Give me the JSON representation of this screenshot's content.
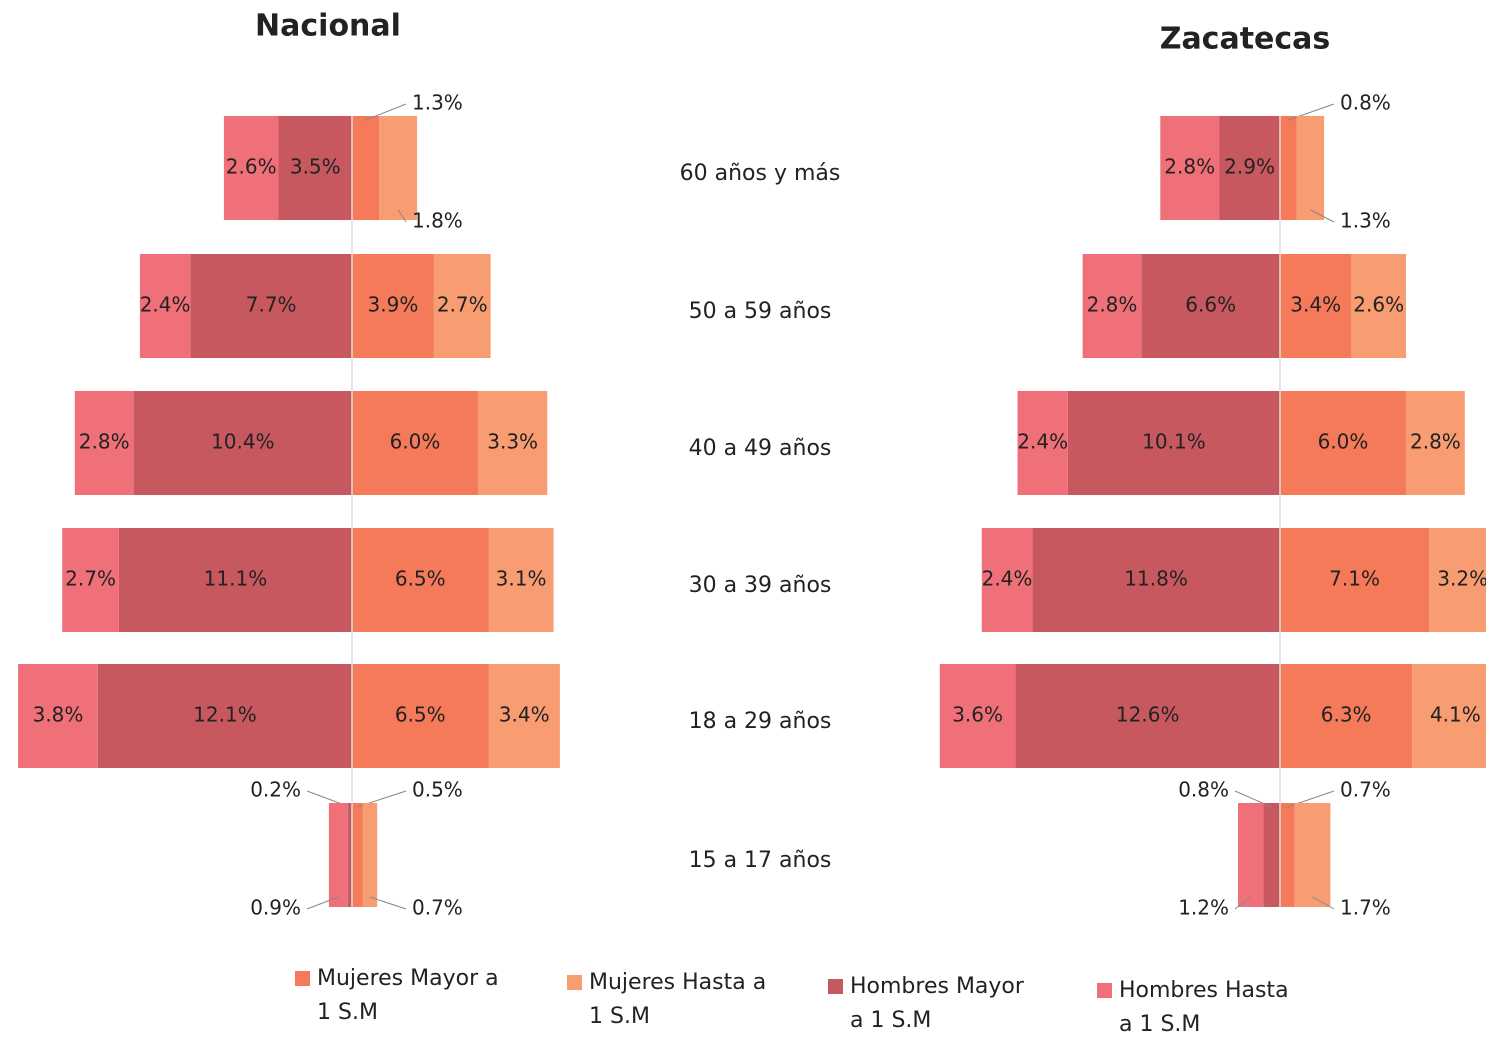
{
  "chart_data": [
    {
      "type": "pyramid",
      "title": "Nacional",
      "categories": [
        "60 años y más",
        "50 a 59 años",
        "40 a 49 años",
        "30 a 39 años",
        "18 a 29 años",
        "15 a 17 años"
      ],
      "series": [
        {
          "name": "Mujeres Mayor a 1 S.M",
          "color": "#f47a5a",
          "values": [
            1.3,
            3.9,
            6.0,
            6.5,
            6.5,
            0.5
          ],
          "value_labels": [
            "1.3%",
            "3.9%",
            "6.0%",
            "6.5%",
            "6.5%",
            "0.5%"
          ]
        },
        {
          "name": "Mujeres Hasta a 1 S.M",
          "color": "#f89c72",
          "values": [
            1.8,
            2.7,
            3.3,
            3.1,
            3.4,
            0.7
          ],
          "value_labels": [
            "1.8%",
            "2.7%",
            "3.3%",
            "3.1%",
            "3.4%",
            "0.7%"
          ]
        },
        {
          "name": "Hombres Mayor a 1 S.M",
          "color": "#c75860",
          "values": [
            3.5,
            7.7,
            10.4,
            11.1,
            12.1,
            0.2
          ],
          "value_labels": [
            "3.5%",
            "7.7%",
            "10.4%",
            "11.1%",
            "12.1%",
            "0.2%"
          ]
        },
        {
          "name": "Hombres Hasta a 1 S.M",
          "color": "#f0707a",
          "values": [
            2.6,
            2.4,
            2.8,
            2.7,
            3.8,
            0.9
          ],
          "value_labels": [
            "2.6%",
            "2.4%",
            "2.8%",
            "2.7%",
            "3.8%",
            "0.9%"
          ]
        }
      ]
    },
    {
      "type": "pyramid",
      "title": "Zacatecas",
      "series": [
        {
          "name": "Mujeres Mayor a 1 S.M",
          "color": "#f47a5a",
          "values": [
            0.8,
            3.4,
            6.0,
            7.1,
            6.3,
            0.7
          ],
          "value_labels": [
            "0.8%",
            "3.4%",
            "6.0%",
            "7.1%",
            "6.3%",
            "0.7%"
          ]
        },
        {
          "name": "Mujeres Hasta a 1 S.M",
          "color": "#f89c72",
          "values": [
            1.3,
            2.6,
            2.8,
            3.2,
            4.1,
            1.7
          ],
          "value_labels": [
            "1.3%",
            "2.6%",
            "2.8%",
            "3.2%",
            "4.1%",
            "1.7%"
          ]
        },
        {
          "name": "Hombres Mayor a 1 S.M",
          "color": "#c75860",
          "values": [
            2.9,
            6.6,
            10.1,
            11.8,
            12.6,
            0.8
          ],
          "value_labels": [
            "2.9%",
            "6.6%",
            "10.1%",
            "11.8%",
            "12.6%",
            "0.8%"
          ]
        },
        {
          "name": "Hombres Hasta a 1 S.M",
          "color": "#f0707a",
          "values": [
            2.8,
            2.8,
            2.4,
            2.4,
            3.6,
            1.2
          ],
          "value_labels": [
            "2.8%",
            "2.8%",
            "2.4%",
            "2.4%",
            "3.6%",
            "1.2%"
          ]
        }
      ]
    }
  ]
}
